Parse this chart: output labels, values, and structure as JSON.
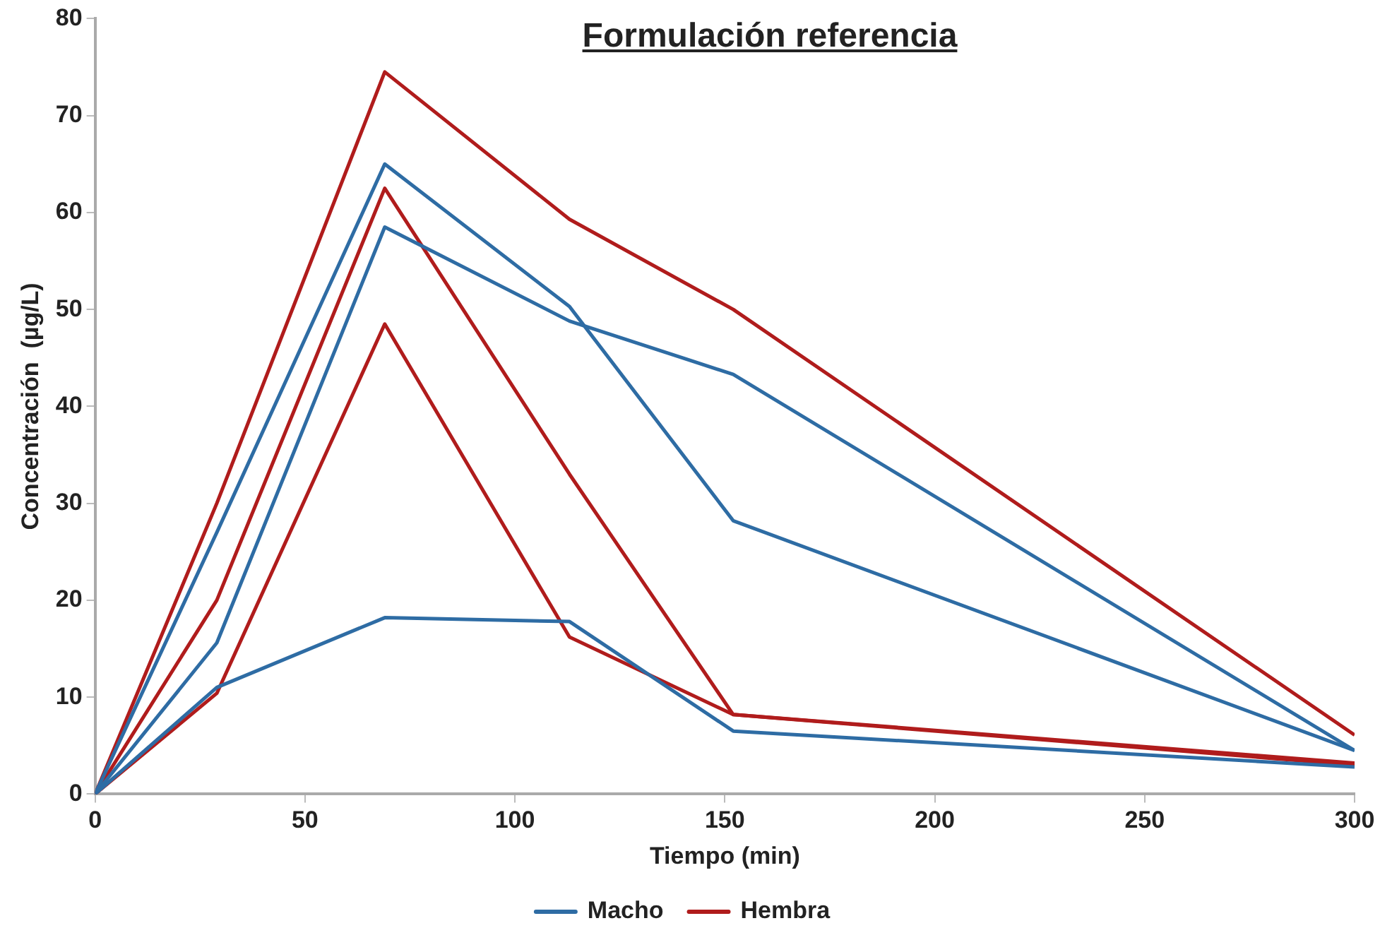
{
  "chart_data": {
    "type": "line",
    "title": "Formulación referencia",
    "xlabel": "Tiempo (min)",
    "ylabel": "Concentración  (µg/L)",
    "x": [
      0,
      29,
      69,
      113,
      152,
      300
    ],
    "series": [
      {
        "name": "Macho",
        "color": "#2e6ca4",
        "values": [
          0,
          27,
          65,
          50.3,
          28.2,
          4.5
        ]
      },
      {
        "color": "#2e6ca4",
        "values": [
          0,
          15.6,
          58.5,
          48.8,
          43.3,
          4.5
        ]
      },
      {
        "color": "#2e6ca4",
        "values": [
          0,
          11,
          18.2,
          17.8,
          6.5,
          2.8
        ]
      },
      {
        "name": "Hembra",
        "color": "#b01c1c",
        "values": [
          0,
          30,
          74.5,
          59.3,
          50,
          6.1
        ]
      },
      {
        "color": "#b01c1c",
        "values": [
          0,
          20,
          62.5,
          33,
          8.2,
          3.2
        ]
      },
      {
        "color": "#b01c1c",
        "values": [
          0,
          10.4,
          48.5,
          16.2,
          8.2,
          3
        ]
      }
    ],
    "xlim": [
      0,
      300
    ],
    "xticks": [
      0,
      50,
      100,
      150,
      200,
      250,
      300
    ],
    "ylim": [
      0,
      80
    ],
    "yticks": [
      0,
      10,
      20,
      30,
      40,
      50,
      60,
      70,
      80
    ],
    "grid": false,
    "legend": "bottom",
    "marker": "none",
    "line_style": "solid"
  }
}
